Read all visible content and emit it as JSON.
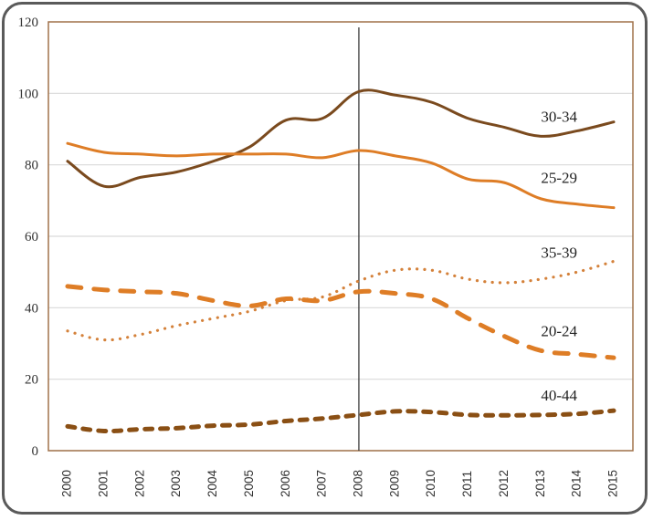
{
  "chart_data": {
    "type": "line",
    "title": "",
    "xlabel": "",
    "ylabel": "",
    "x": [
      2000,
      2001,
      2002,
      2003,
      2004,
      2005,
      2006,
      2007,
      2008,
      2009,
      2010,
      2011,
      2012,
      2013,
      2014,
      2015
    ],
    "x_tick_labels": [
      "2000",
      "2001",
      "2002",
      "2003",
      "2004",
      "2005",
      "2006",
      "2007",
      "2008",
      "2009",
      "2010",
      "2011",
      "2012",
      "2013",
      "2014",
      "2015"
    ],
    "ylim": [
      0,
      120
    ],
    "y_ticks": [
      0,
      20,
      40,
      60,
      80,
      100,
      120
    ],
    "y_tick_labels": [
      "0",
      "20",
      "40",
      "60",
      "80",
      "100",
      "120"
    ],
    "grid": "horizontal",
    "legend": "inline labels at right",
    "reference_line": {
      "x": 2008,
      "color": "#3a3a3a"
    },
    "series": [
      {
        "name": "30-34",
        "color": "#7a4a1e",
        "style": "solid",
        "values": [
          81,
          74,
          76.5,
          78,
          81,
          85,
          92.5,
          93,
          100.5,
          99.5,
          97.5,
          93,
          90.5,
          88,
          89.5,
          92
        ]
      },
      {
        "name": "25-29",
        "color": "#de7d26",
        "style": "solid",
        "values": [
          86,
          83.5,
          83,
          82.5,
          83,
          83,
          83,
          82,
          84,
          82.5,
          80.5,
          76,
          75,
          70.5,
          69,
          68
        ]
      },
      {
        "name": "35-39",
        "color": "#d4813a",
        "style": "dotted",
        "values": [
          33.5,
          31,
          32.5,
          35,
          37,
          39,
          42,
          43,
          47.5,
          50.5,
          50.5,
          48,
          47,
          48,
          50,
          53
        ]
      },
      {
        "name": "20-24",
        "color": "#de7d26",
        "style": "dashed",
        "values": [
          46,
          45,
          44.5,
          44,
          42,
          40.5,
          42.5,
          42,
          44.5,
          44,
          42.5,
          37,
          32,
          28,
          27,
          26
        ]
      },
      {
        "name": "40-44",
        "color": "#8a4f14",
        "style": "dashed-short",
        "values": [
          6.8,
          5.5,
          6,
          6.3,
          7,
          7.3,
          8.3,
          9,
          10,
          11,
          10.8,
          10,
          9.9,
          10,
          10.3,
          11.2
        ]
      }
    ],
    "labels": [
      {
        "series": "30-34",
        "text": "30-34",
        "at_x": 2013.5,
        "at_y": 92
      },
      {
        "series": "25-29",
        "text": "25-29",
        "at_x": 2013.5,
        "at_y": 75
      },
      {
        "series": "35-39",
        "text": "35-39",
        "at_x": 2013.5,
        "at_y": 54
      },
      {
        "series": "20-24",
        "text": "20-24",
        "at_x": 2013.5,
        "at_y": 32
      },
      {
        "series": "40-44",
        "text": "40-44",
        "at_x": 2013.5,
        "at_y": 14
      }
    ]
  },
  "colors": {
    "frame": "#5a5a5a",
    "plot_border": "#a0724a",
    "grid": "#d9d9d9"
  }
}
